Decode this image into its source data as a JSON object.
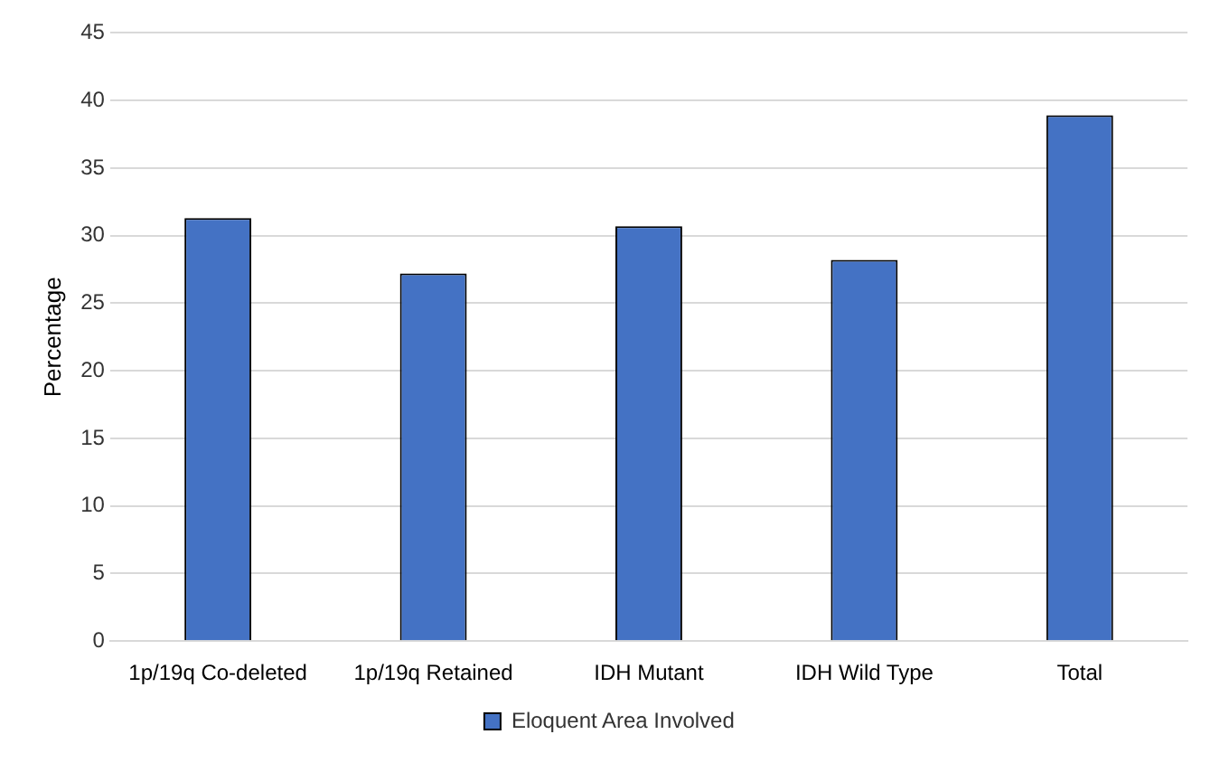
{
  "chart_data": {
    "type": "bar",
    "ylabel": "Percentage",
    "categories": [
      "1p/19q Co-deleted",
      "1p/19q Retained",
      "IDH Mutant",
      "IDH Wild Type",
      "Total"
    ],
    "series": [
      {
        "name": "Eloquent Area Involved",
        "color": "#4472c4",
        "values": [
          31.3,
          27.2,
          30.7,
          28.2,
          38.9
        ]
      }
    ],
    "ylim": [
      0,
      45
    ],
    "yticks": [
      0,
      5,
      10,
      15,
      20,
      25,
      30,
      35,
      40,
      45
    ],
    "grid": "y",
    "legend": "bottom"
  }
}
